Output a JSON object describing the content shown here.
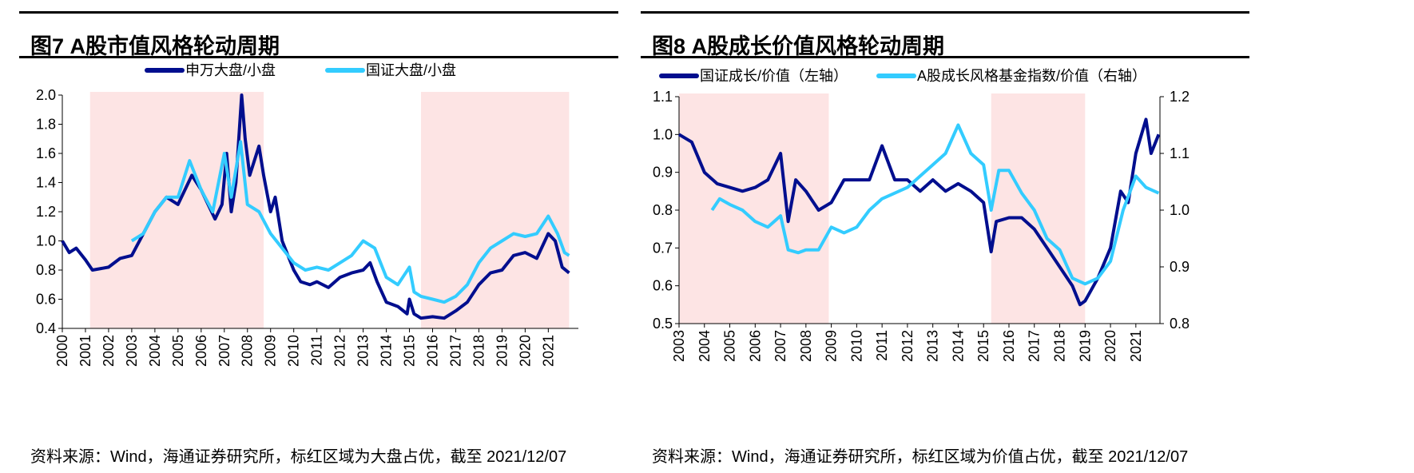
{
  "chart_data": [
    {
      "type": "line",
      "title": "图7  A股市值风格轮动周期",
      "source": "资料来源：Wind，海通证券研究所，标红区域为大盘占优，截至 2021/12/07",
      "xlim": [
        2000,
        2022
      ],
      "ylim": [
        0.4,
        2.0
      ],
      "yticks": [
        "0.4",
        "0.6",
        "0.8",
        "1.0",
        "1.2",
        "1.4",
        "1.6",
        "1.8",
        "2.0"
      ],
      "xticks": [
        "2000",
        "2001",
        "2002",
        "2003",
        "2004",
        "2005",
        "2006",
        "2007",
        "2008",
        "2009",
        "2010",
        "2011",
        "2012",
        "2013",
        "2014",
        "2015",
        "2016",
        "2017",
        "2018",
        "2019",
        "2020",
        "2021"
      ],
      "shaded": [
        [
          2001.2,
          2008.7
        ],
        [
          2015.5,
          2021.9
        ]
      ],
      "legend": "top-center",
      "series": [
        {
          "name": "申万大盘/小盘",
          "color": "#000e8e",
          "axis": "left",
          "x": [
            2000,
            2000.3,
            2000.6,
            2001,
            2001.3,
            2002,
            2002.5,
            2003,
            2003.5,
            2004,
            2004.5,
            2005,
            2005.3,
            2005.6,
            2006,
            2006.3,
            2006.6,
            2006.9,
            2007.1,
            2007.3,
            2007.5,
            2007.75,
            2007.9,
            2008.1,
            2008.3,
            2008.5,
            2008.7,
            2009,
            2009.2,
            2009.5,
            2010,
            2010.3,
            2010.7,
            2011,
            2011.5,
            2012,
            2012.5,
            2013,
            2013.3,
            2013.6,
            2014,
            2014.5,
            2014.9,
            2015,
            2015.2,
            2015.5,
            2016,
            2016.5,
            2017,
            2017.5,
            2018,
            2018.5,
            2019,
            2019.5,
            2020,
            2020.5,
            2021,
            2021.3,
            2021.6,
            2021.9
          ],
          "y": [
            1.0,
            0.92,
            0.95,
            0.87,
            0.8,
            0.82,
            0.88,
            0.9,
            1.05,
            1.2,
            1.3,
            1.25,
            1.35,
            1.45,
            1.35,
            1.25,
            1.15,
            1.25,
            1.6,
            1.2,
            1.4,
            2.0,
            1.7,
            1.45,
            1.55,
            1.65,
            1.45,
            1.2,
            1.3,
            1.0,
            0.8,
            0.72,
            0.7,
            0.72,
            0.68,
            0.75,
            0.78,
            0.8,
            0.85,
            0.72,
            0.58,
            0.55,
            0.5,
            0.6,
            0.5,
            0.47,
            0.48,
            0.47,
            0.52,
            0.58,
            0.7,
            0.78,
            0.8,
            0.9,
            0.92,
            0.88,
            1.05,
            1.0,
            0.82,
            0.78
          ]
        },
        {
          "name": "国证大盘/小盘",
          "color": "#33ccff",
          "axis": "left",
          "x": [
            2003,
            2003.5,
            2004,
            2004.5,
            2005,
            2005.5,
            2006,
            2006.5,
            2007,
            2007.3,
            2007.7,
            2008,
            2008.5,
            2009,
            2009.5,
            2010,
            2010.5,
            2011,
            2011.5,
            2012,
            2012.5,
            2013,
            2013.5,
            2014,
            2014.5,
            2015,
            2015.2,
            2015.5,
            2016,
            2016.5,
            2017,
            2017.5,
            2018,
            2018.5,
            2019,
            2019.5,
            2020,
            2020.5,
            2021,
            2021.4,
            2021.7,
            2021.9
          ],
          "y": [
            1.0,
            1.05,
            1.2,
            1.3,
            1.3,
            1.55,
            1.35,
            1.2,
            1.6,
            1.3,
            1.68,
            1.25,
            1.2,
            1.05,
            0.95,
            0.85,
            0.8,
            0.82,
            0.8,
            0.85,
            0.9,
            1.0,
            0.95,
            0.75,
            0.7,
            0.82,
            0.65,
            0.62,
            0.6,
            0.58,
            0.62,
            0.7,
            0.85,
            0.95,
            1.0,
            1.05,
            1.03,
            1.05,
            1.17,
            1.05,
            0.92,
            0.9
          ]
        }
      ]
    },
    {
      "type": "line",
      "title": "图8  A股成长价值风格轮动周期",
      "source": "资料来源：Wind，海通证券研究所，标红区域为价值占优，截至 2021/12/07",
      "xlim": [
        2003,
        2022
      ],
      "ylim": [
        0.5,
        1.1
      ],
      "y2lim": [
        0.8,
        1.2
      ],
      "yticks": [
        "0.5",
        "0.6",
        "0.7",
        "0.8",
        "0.9",
        "1.0",
        "1.1"
      ],
      "y2ticks": [
        "0.8",
        "0.9",
        "1.0",
        "1.1",
        "1.2"
      ],
      "xticks": [
        "2003",
        "2004",
        "2005",
        "2006",
        "2007",
        "2008",
        "2009",
        "2010",
        "2011",
        "2012",
        "2013",
        "2014",
        "2015",
        "2016",
        "2017",
        "2018",
        "2019",
        "2020",
        "2021"
      ],
      "shaded": [
        [
          2003,
          2008.9
        ],
        [
          2015.3,
          2019.0
        ]
      ],
      "legend": "top-center",
      "series": [
        {
          "name": "国证成长/价值（左轴）",
          "color": "#000e8e",
          "axis": "left",
          "x": [
            2003,
            2003.5,
            2004,
            2004.5,
            2005,
            2005.5,
            2006,
            2006.5,
            2007,
            2007.3,
            2007.6,
            2008,
            2008.5,
            2009,
            2009.5,
            2010,
            2010.5,
            2011,
            2011.5,
            2012,
            2012.5,
            2013,
            2013.5,
            2014,
            2014.5,
            2015,
            2015.3,
            2015.5,
            2016,
            2016.5,
            2017,
            2017.5,
            2018,
            2018.5,
            2018.8,
            2019,
            2019.5,
            2020,
            2020.4,
            2020.7,
            2021,
            2021.4,
            2021.6,
            2021.9
          ],
          "y": [
            1.0,
            0.98,
            0.9,
            0.87,
            0.86,
            0.85,
            0.86,
            0.88,
            0.95,
            0.77,
            0.88,
            0.85,
            0.8,
            0.82,
            0.88,
            0.88,
            0.88,
            0.97,
            0.88,
            0.88,
            0.85,
            0.88,
            0.85,
            0.87,
            0.85,
            0.82,
            0.69,
            0.77,
            0.78,
            0.78,
            0.75,
            0.7,
            0.65,
            0.6,
            0.55,
            0.56,
            0.62,
            0.7,
            0.85,
            0.82,
            0.95,
            1.04,
            0.95,
            1.0
          ]
        },
        {
          "name": "A股成长风格基金指数/价值（右轴）",
          "color": "#33ccff",
          "axis": "right",
          "x": [
            2004.3,
            2004.6,
            2005,
            2005.5,
            2006,
            2006.5,
            2007,
            2007.3,
            2007.7,
            2008,
            2008.5,
            2009,
            2009.5,
            2010,
            2010.5,
            2011,
            2011.5,
            2012,
            2012.5,
            2013,
            2013.5,
            2014,
            2014.5,
            2015,
            2015.3,
            2015.6,
            2016,
            2016.5,
            2017,
            2017.5,
            2018,
            2018.5,
            2019,
            2019.5,
            2020,
            2020.5,
            2021,
            2021.4,
            2021.9
          ],
          "y": [
            1.0,
            1.02,
            1.01,
            1.0,
            0.98,
            0.97,
            0.99,
            0.93,
            0.925,
            0.93,
            0.93,
            0.97,
            0.96,
            0.97,
            1.0,
            1.02,
            1.03,
            1.04,
            1.06,
            1.08,
            1.1,
            1.15,
            1.1,
            1.08,
            1.0,
            1.07,
            1.07,
            1.03,
            1.0,
            0.95,
            0.93,
            0.88,
            0.87,
            0.88,
            0.91,
            1.0,
            1.06,
            1.04,
            1.03
          ]
        }
      ]
    }
  ]
}
